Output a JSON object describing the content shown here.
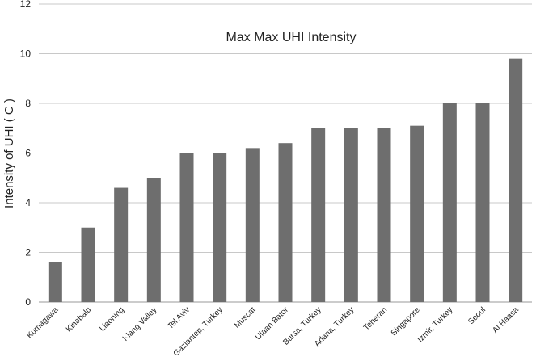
{
  "chart_data": {
    "type": "bar",
    "title": "Max Max UHI Intensity",
    "xlabel": "",
    "ylabel": "Intensity of UHI  ( C )",
    "ylim": [
      0,
      12
    ],
    "yticks": [
      0,
      2,
      4,
      6,
      8,
      10,
      12
    ],
    "grid": true,
    "legend": "none",
    "bar_color": "#6e6e6e",
    "categories": [
      "Kumagawa",
      "Kinabalu",
      "Liaoning",
      "Klang Valley",
      "Tel Aviv",
      "Gaziantep, Turkey",
      "Muscat",
      "Ulaan Bator",
      "Bursa, Turkey",
      "Adana, Turkey",
      "Teheran",
      "Singapore",
      "Izmir, Turkey",
      "Seoul",
      "Al Haasa"
    ],
    "values": [
      1.6,
      3.0,
      4.6,
      5.0,
      6.0,
      6.0,
      6.2,
      6.4,
      7.0,
      7.0,
      7.0,
      7.1,
      8.0,
      8.0,
      9.8
    ]
  }
}
